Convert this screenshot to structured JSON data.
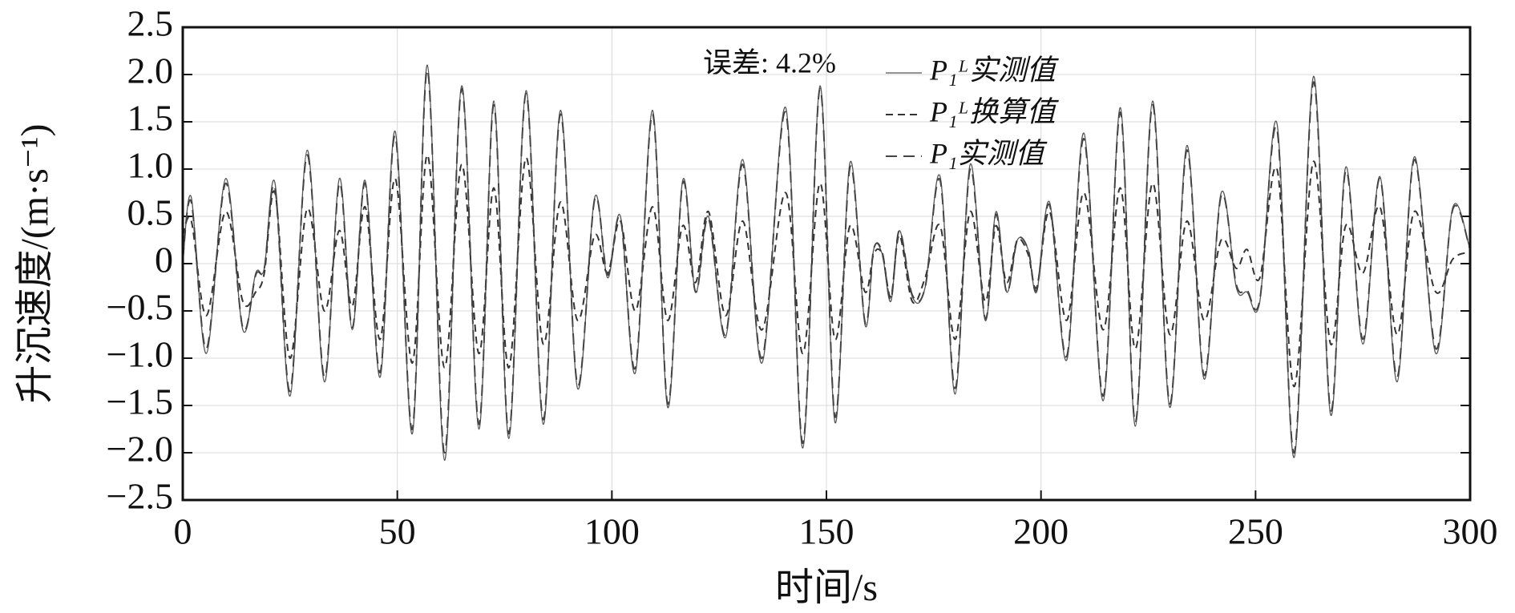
{
  "chart_data": {
    "type": "line",
    "x_label": "时间/s",
    "y_label": "升沉速度/(m·s⁻¹)",
    "annotation": "误差: 4.2%",
    "grid": true,
    "legend": "top-center",
    "xlim": [
      0,
      300
    ],
    "xticks": [
      0,
      50,
      100,
      150,
      200,
      250,
      300
    ],
    "ylim": [
      -2.5,
      2.5
    ],
    "yticks": [
      {
        "value": -2.5,
        "label": "−2.5"
      },
      {
        "value": -2.0,
        "label": "−2.0"
      },
      {
        "value": -1.5,
        "label": "−1.5"
      },
      {
        "value": -1.0,
        "label": "−1.0"
      },
      {
        "value": -0.5,
        "label": "−0.5"
      },
      0,
      {
        "value": 0.5,
        "label": "0.5"
      },
      {
        "value": 1.0,
        "label": "1.0"
      },
      {
        "value": 1.5,
        "label": "1.5"
      },
      {
        "value": 2.0,
        "label": "2.0"
      },
      {
        "value": 2.5,
        "label": "2.5"
      }
    ],
    "x": [
      0,
      2,
      5.5,
      10,
      14,
      17,
      19,
      21.5,
      25,
      29,
      33,
      36.5,
      39.5,
      42.5,
      46,
      49.5,
      53.5,
      57,
      61,
      65,
      69,
      72.5,
      76,
      80,
      84,
      88,
      92,
      96,
      99,
      102,
      105.5,
      109.5,
      113,
      116.5,
      119.5,
      122.5,
      126.5,
      130.5,
      135,
      140.5,
      144.5,
      148.5,
      152,
      155.5,
      159,
      161,
      163,
      165,
      167,
      170,
      173,
      176.5,
      180,
      183.5,
      187,
      189.5,
      192,
      194.5,
      197,
      199,
      202,
      206,
      210,
      214.5,
      218.5,
      222,
      226,
      230,
      234,
      238,
      242,
      245.5,
      248,
      251,
      255,
      259,
      263.5,
      267.5,
      271,
      275,
      279,
      283,
      287,
      292,
      296,
      300
    ],
    "series": [
      {
        "name": "P₁ᴸ实测值",
        "color": "#555555",
        "dash": "none",
        "values": [
          0,
          0.7,
          -0.95,
          0.9,
          -0.7,
          -0.1,
          -0.05,
          0.85,
          -1.4,
          1.2,
          -1.25,
          0.9,
          -0.7,
          0.88,
          -1.2,
          1.4,
          -1.8,
          2.1,
          -2.08,
          1.88,
          -1.75,
          1.72,
          -1.85,
          1.83,
          -1.7,
          1.62,
          -1.32,
          0.7,
          -0.15,
          0.5,
          -1.15,
          1.62,
          -1.52,
          0.88,
          -0.3,
          0.5,
          -0.78,
          1.1,
          -1.05,
          1.65,
          -1.95,
          1.88,
          -1.68,
          1.07,
          -0.65,
          0.15,
          0.1,
          -0.4,
          0.35,
          -0.35,
          -0.25,
          0.92,
          -1.38,
          1.05,
          -0.6,
          0.55,
          -0.3,
          0.25,
          0.15,
          -0.3,
          0.65,
          -1.02,
          1.38,
          -1.45,
          1.65,
          -1.72,
          1.72,
          -1.52,
          1.25,
          -1.22,
          0.75,
          -0.25,
          -0.3,
          -0.4,
          1.48,
          -2.05,
          1.98,
          -1.6,
          1.02,
          -0.85,
          0.92,
          -1.25,
          1.13,
          -0.95,
          0.6,
          0.15
        ]
      },
      {
        "name": "P₁ᴸ换算值",
        "color": "#333333",
        "dash": "9 6",
        "values": [
          0.3,
          0.45,
          -0.55,
          0.55,
          -0.4,
          -0.3,
          -0.1,
          0.75,
          -1.0,
          0.58,
          -0.5,
          0.35,
          -0.45,
          0.6,
          -0.8,
          0.9,
          -1.05,
          1.15,
          -1.1,
          1.05,
          -0.95,
          0.8,
          -1.1,
          1.12,
          -0.85,
          0.65,
          -0.6,
          0.3,
          -0.1,
          0.45,
          -0.5,
          0.6,
          -0.6,
          0.4,
          -0.2,
          0.55,
          -0.55,
          0.45,
          -0.7,
          0.75,
          -0.95,
          0.85,
          -0.8,
          0.4,
          -0.3,
          0.1,
          0.1,
          -0.35,
          0.3,
          -0.4,
          -0.15,
          0.4,
          -0.8,
          0.55,
          -0.4,
          0.4,
          -0.2,
          0.25,
          0.1,
          -0.25,
          0.55,
          -0.6,
          0.75,
          -0.7,
          0.8,
          -0.9,
          0.85,
          -0.75,
          0.45,
          -0.6,
          0.25,
          -0.05,
          0.15,
          -0.15,
          1.0,
          -1.3,
          1.08,
          -0.85,
          0.4,
          -0.1,
          0.6,
          -0.75,
          0.55,
          -0.3,
          0.05,
          0.12
        ]
      },
      {
        "name": "P₁实测值",
        "color": "#444444",
        "dash": "14 8",
        "values": [
          0.05,
          0.65,
          -0.9,
          0.85,
          -0.68,
          -0.12,
          -0.05,
          0.8,
          -1.35,
          1.15,
          -1.2,
          0.85,
          -0.68,
          0.85,
          -1.15,
          1.35,
          -1.75,
          2.05,
          -2.0,
          1.85,
          -1.7,
          1.68,
          -1.8,
          1.8,
          -1.65,
          1.58,
          -1.28,
          0.68,
          -0.12,
          0.48,
          -1.1,
          1.58,
          -1.48,
          0.85,
          -0.3,
          0.48,
          -0.75,
          1.05,
          -1.0,
          1.6,
          -1.9,
          1.85,
          -1.62,
          1.02,
          -0.62,
          0.15,
          0.12,
          -0.38,
          0.35,
          -0.33,
          -0.25,
          0.88,
          -1.32,
          1.0,
          -0.58,
          0.52,
          -0.3,
          0.25,
          0.15,
          -0.28,
          0.62,
          -0.98,
          1.32,
          -1.4,
          1.6,
          -1.68,
          1.68,
          -1.48,
          1.2,
          -1.18,
          0.72,
          -0.22,
          -0.28,
          -0.38,
          1.42,
          -2.0,
          1.92,
          -1.55,
          0.98,
          -0.8,
          0.9,
          -1.2,
          1.1,
          -0.9,
          0.58,
          0.15
        ]
      }
    ]
  }
}
